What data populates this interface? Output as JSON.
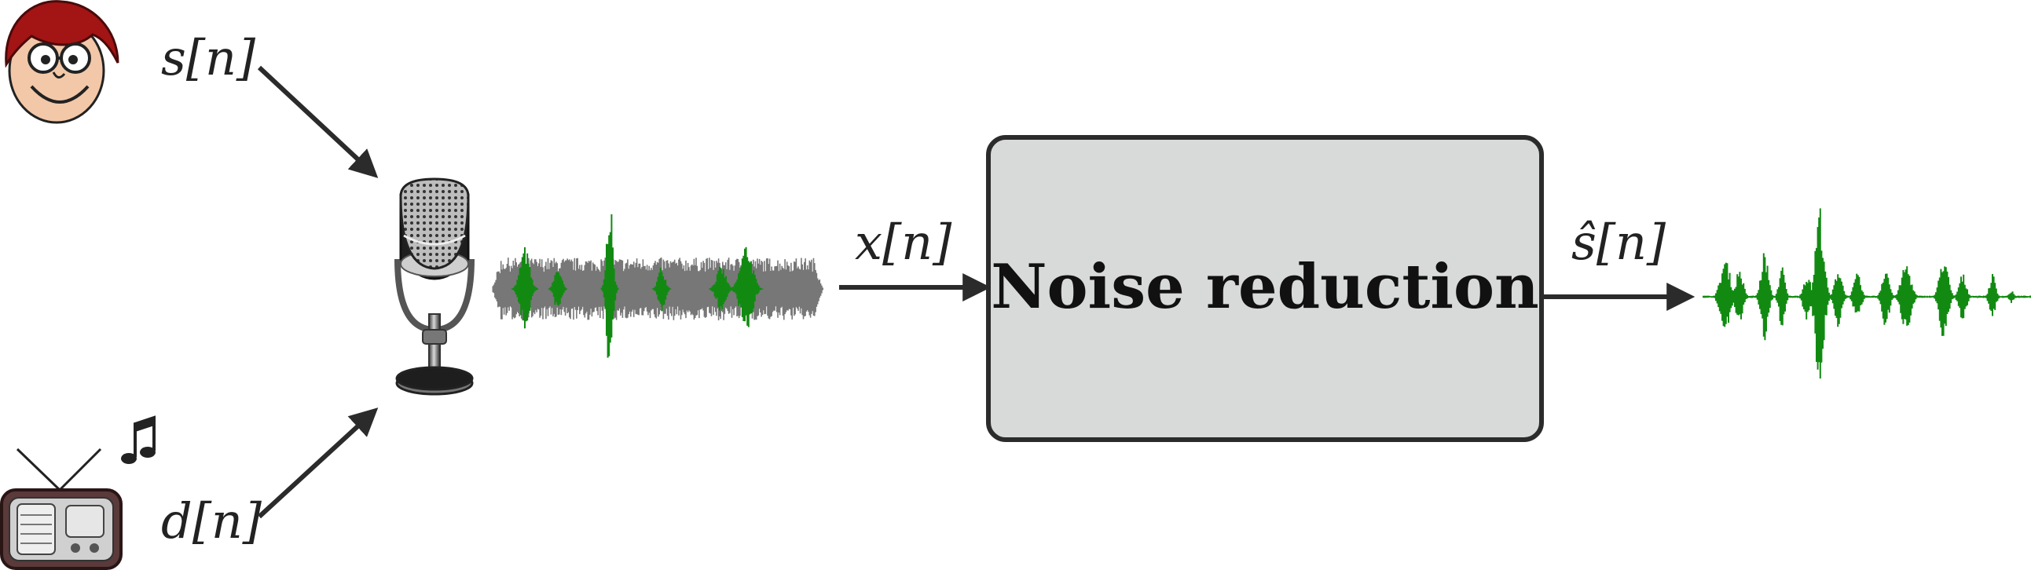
{
  "labels": {
    "speech_input": "s[n]",
    "noise_input": "d[n]",
    "noisy_signal": "x[n]",
    "estimated_output": "ŝ[n]"
  },
  "block": {
    "title": "Noise reduction"
  },
  "icons": [
    "person-face-icon",
    "radio-icon",
    "music-note-icon",
    "microphone-icon"
  ],
  "colors": {
    "speech_waveform": "#128a12",
    "noise_waveform": "#777777",
    "block_fill": "#d8d9d9",
    "block_stroke": "#2b2b2b",
    "arrow": "#2b2b2b",
    "hair": "#a31414",
    "skin": "#f2c8a8"
  }
}
